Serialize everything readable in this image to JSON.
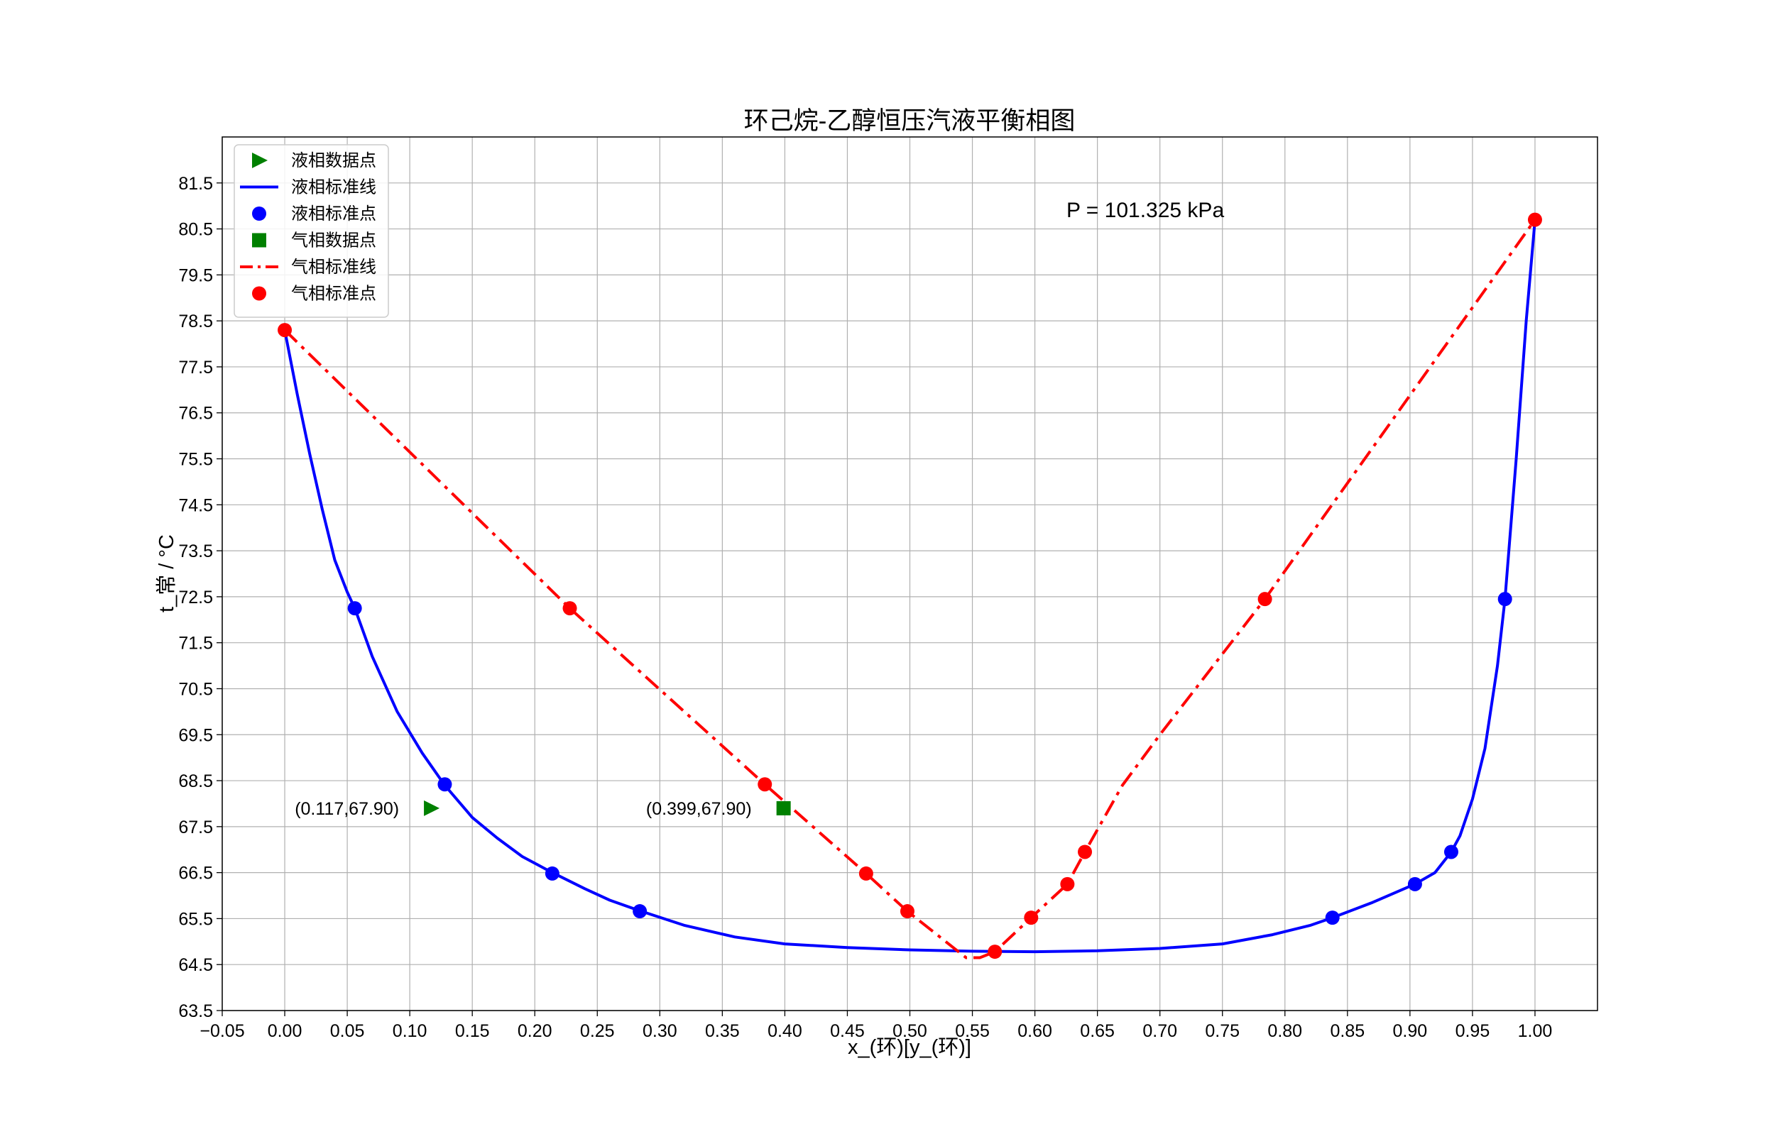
{
  "chart_data": {
    "type": "line",
    "title": "环己烷-乙醇恒压汽液平衡相图",
    "xlabel": "x_(环)[y_(环)]",
    "ylabel": "t_常 / °C",
    "xlim": [
      -0.05,
      1.05
    ],
    "ylim": [
      63.5,
      82.5
    ],
    "xticks": [
      -0.05,
      0.0,
      0.05,
      0.1,
      0.15,
      0.2,
      0.25,
      0.3,
      0.35,
      0.4,
      0.45,
      0.5,
      0.55,
      0.6,
      0.65,
      0.7,
      0.75,
      0.8,
      0.85,
      0.9,
      0.95,
      1.0
    ],
    "xtick_labels": [
      "−0.05",
      "0.00",
      "0.05",
      "0.10",
      "0.15",
      "0.20",
      "0.25",
      "0.30",
      "0.35",
      "0.40",
      "0.45",
      "0.50",
      "0.55",
      "0.60",
      "0.65",
      "0.70",
      "0.75",
      "0.80",
      "0.85",
      "0.90",
      "0.95",
      "1.00"
    ],
    "yticks": [
      63.5,
      64.5,
      65.5,
      66.5,
      67.5,
      68.5,
      69.5,
      70.5,
      71.5,
      72.5,
      73.5,
      74.5,
      75.5,
      76.5,
      77.5,
      78.5,
      79.5,
      80.5,
      81.5
    ],
    "ytick_labels": [
      "63.5",
      "64.5",
      "65.5",
      "66.5",
      "67.5",
      "68.5",
      "69.5",
      "70.5",
      "71.5",
      "72.5",
      "73.5",
      "74.5",
      "75.5",
      "76.5",
      "77.5",
      "78.5",
      "79.5",
      "80.5",
      "81.5"
    ],
    "grid": true,
    "legend_position": "top-left",
    "pressure_note": "P = 101.325 kPa",
    "series": [
      {
        "name": "液相数据点",
        "kind": "marker",
        "marker": "triangle-right",
        "color": "#008000",
        "points": [
          [
            0.117,
            67.9
          ]
        ]
      },
      {
        "name": "液相标准线",
        "kind": "line",
        "style": "solid",
        "color": "#0000ff",
        "points": [
          [
            0.0,
            78.3
          ],
          [
            0.01,
            76.9
          ],
          [
            0.02,
            75.6
          ],
          [
            0.03,
            74.4
          ],
          [
            0.04,
            73.3
          ],
          [
            0.05,
            72.6
          ],
          [
            0.056,
            72.25
          ],
          [
            0.07,
            71.2
          ],
          [
            0.09,
            70.0
          ],
          [
            0.11,
            69.1
          ],
          [
            0.128,
            68.4
          ],
          [
            0.15,
            67.7
          ],
          [
            0.17,
            67.25
          ],
          [
            0.19,
            66.85
          ],
          [
            0.214,
            66.5
          ],
          [
            0.24,
            66.15
          ],
          [
            0.26,
            65.9
          ],
          [
            0.284,
            65.67
          ],
          [
            0.32,
            65.35
          ],
          [
            0.36,
            65.1
          ],
          [
            0.4,
            64.95
          ],
          [
            0.45,
            64.87
          ],
          [
            0.5,
            64.82
          ],
          [
            0.55,
            64.79
          ],
          [
            0.6,
            64.78
          ],
          [
            0.65,
            64.8
          ],
          [
            0.7,
            64.85
          ],
          [
            0.75,
            64.95
          ],
          [
            0.79,
            65.15
          ],
          [
            0.82,
            65.35
          ],
          [
            0.838,
            65.52
          ],
          [
            0.87,
            65.85
          ],
          [
            0.904,
            66.25
          ],
          [
            0.92,
            66.5
          ],
          [
            0.933,
            66.95
          ],
          [
            0.94,
            67.3
          ],
          [
            0.95,
            68.1
          ],
          [
            0.96,
            69.2
          ],
          [
            0.97,
            71.0
          ],
          [
            0.976,
            72.45
          ],
          [
            0.985,
            75.5
          ],
          [
            0.993,
            78.5
          ],
          [
            1.0,
            80.7
          ]
        ]
      },
      {
        "name": "液相标准点",
        "kind": "marker",
        "marker": "circle",
        "color": "#0000ff",
        "points": [
          [
            0.056,
            72.25
          ],
          [
            0.128,
            68.42
          ],
          [
            0.214,
            66.48
          ],
          [
            0.284,
            65.66
          ],
          [
            0.838,
            65.52
          ],
          [
            0.904,
            66.25
          ],
          [
            0.933,
            66.95
          ],
          [
            0.976,
            72.45
          ]
        ]
      },
      {
        "name": "气相数据点",
        "kind": "marker",
        "marker": "square",
        "color": "#008000",
        "points": [
          [
            0.399,
            67.9
          ]
        ]
      },
      {
        "name": "气相标准线",
        "kind": "line",
        "style": "dashdot",
        "color": "#ff0000",
        "points": [
          [
            0.0,
            78.3
          ],
          [
            0.228,
            72.25
          ],
          [
            0.384,
            68.42
          ],
          [
            0.465,
            66.48
          ],
          [
            0.498,
            65.66
          ],
          [
            0.545,
            64.65
          ],
          [
            0.556,
            64.65
          ],
          [
            0.568,
            64.78
          ],
          [
            0.597,
            65.52
          ],
          [
            0.626,
            66.25
          ],
          [
            0.64,
            66.95
          ],
          [
            0.67,
            68.4
          ],
          [
            0.7,
            69.5
          ],
          [
            0.784,
            72.45
          ],
          [
            1.0,
            80.7
          ]
        ]
      },
      {
        "name": "气相标准点",
        "kind": "marker",
        "marker": "circle",
        "color": "#ff0000",
        "points": [
          [
            0.0,
            78.3
          ],
          [
            0.228,
            72.25
          ],
          [
            0.384,
            68.42
          ],
          [
            0.465,
            66.48
          ],
          [
            0.498,
            65.66
          ],
          [
            0.568,
            64.78
          ],
          [
            0.597,
            65.52
          ],
          [
            0.626,
            66.25
          ],
          [
            0.64,
            66.95
          ],
          [
            0.784,
            72.45
          ],
          [
            1.0,
            80.7
          ]
        ]
      }
    ],
    "annotations": [
      {
        "text": "(0.117,67.90)",
        "x": 0.117,
        "y": 67.9,
        "anchor": "left-of-point"
      },
      {
        "text": "(0.399,67.90)",
        "x": 0.399,
        "y": 67.9,
        "anchor": "left-of-point"
      }
    ]
  }
}
